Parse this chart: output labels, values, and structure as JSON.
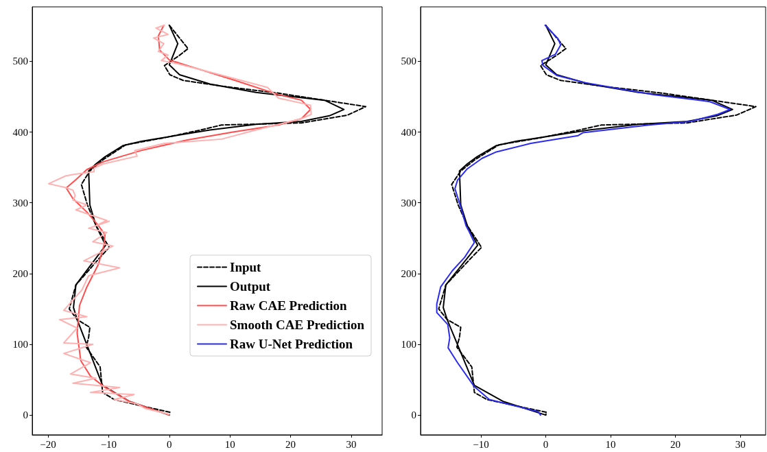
{
  "chart_data": [
    {
      "type": "line",
      "xlim": [
        -22.6,
        35.1
      ],
      "ylim": [
        -28,
        577
      ],
      "xticks": [
        -20,
        -10,
        0,
        10,
        20,
        30
      ],
      "yticks": [
        0,
        100,
        200,
        300,
        400,
        500
      ],
      "grid": false,
      "legend": "right",
      "marker": "none",
      "series": [
        {
          "name": "Input",
          "color": "#000000",
          "line_style": "dashed",
          "x": [
            0,
            3.1,
            1.6,
            -0.8,
            0.1,
            2.3,
            8.6,
            18,
            25.6,
            32.4,
            29.4,
            21.8,
            8.6,
            5.2,
            -0.8,
            -7.2,
            -10.9,
            -13.1,
            -14.5,
            -13.5,
            -12.1,
            -9.9,
            -11.4,
            -15.4,
            -16.5,
            -15.2,
            -13.1,
            -13.3,
            -13.7,
            -11.4,
            -11.0,
            -9.1,
            -4.6,
            0.1,
            0
          ],
          "values": [
            551,
            518,
            508,
            494,
            481,
            473,
            465,
            455,
            445,
            436,
            424,
            413,
            410,
            403,
            392,
            382,
            361,
            345,
            326,
            297,
            268,
            237,
            223,
            184,
            150,
            135,
            124,
            110,
            96,
            68,
            32,
            22,
            13,
            4,
            0
          ]
        },
        {
          "name": "Output",
          "color": "#000000",
          "line_style": "solid",
          "x": [
            0,
            1.4,
            0,
            1.7,
            6.7,
            14.3,
            25.6,
            28.8,
            26.4,
            21.8,
            14.3,
            6.7,
            -4.6,
            -7.6,
            -10.6,
            -12.1,
            -13.3,
            -13.1,
            -12.1,
            -10.5,
            -15.4,
            -15.8,
            -15.2,
            -11.0,
            -6.5,
            0
          ],
          "values": [
            551,
            525,
            495,
            481,
            468,
            456,
            445,
            432,
            423,
            415,
            411,
            403,
            387,
            381,
            365,
            355,
            345,
            297,
            268,
            240,
            184,
            152,
            135,
            42,
            19,
            0
          ]
        },
        {
          "name": "Raw CAE Prediction",
          "color": "#ff4d4d",
          "line_style": "solid",
          "x": [
            -0.9,
            -1.8,
            -1.6,
            0,
            3.0,
            10.5,
            18,
            21.8,
            23.3,
            21.8,
            18,
            10.5,
            3.0,
            -4.6,
            -10.9,
            -13.6,
            -15.5,
            -17.0,
            -15.9,
            -13.6,
            -11.8,
            -10.6,
            -10.8,
            -11.7,
            -13.6,
            -14.8,
            -15.2,
            -14.6,
            -13.0,
            -10.6,
            -6.5,
            0
          ],
          "values": [
            551,
            536,
            516,
            502,
            494,
            474,
            453,
            445,
            432,
            419,
            410,
            400,
            389,
            374,
            358,
            347,
            332,
            321,
            306,
            287,
            269,
            255,
            239,
            213,
            181,
            155,
            116,
            77,
            55,
            39,
            19,
            0
          ]
        },
        {
          "name": "Smooth CAE Prediction",
          "color": "#ffb0b0",
          "line_style": "solid",
          "x": [
            -0.8,
            -2.2,
            -0.2,
            -2.6,
            -0.9,
            -1.8,
            -0.2,
            -1.3,
            1.2,
            5.7,
            16.2,
            18,
            23.3,
            23.4,
            21.8,
            14.3,
            8.6,
            -0.8,
            -5.7,
            -5.3,
            -10.9,
            -12.4,
            -12.4,
            -15.9,
            -17.1,
            -19.9,
            -17.3,
            -15.9,
            -15.5,
            -15.9,
            -13.6,
            -15.4,
            -13,
            -10.3,
            -11.8,
            -9.9,
            -13.3,
            -10.3,
            -12.6,
            -9.3,
            -14.1,
            -8.2,
            -13.3,
            -14.4,
            -17.4,
            -13.6,
            -18.1,
            -15.2,
            -17.4,
            -12.6,
            -17.4,
            -13,
            -16.3,
            -12.1,
            -15.9,
            -8.2,
            -13,
            -5.8,
            -9.1,
            -5.4,
            -3.9,
            0
          ],
          "values": [
            551,
            547,
            538,
            533,
            525,
            514,
            509,
            501,
            497,
            487,
            463,
            448,
            438,
            425,
            419,
            403,
            390,
            384,
            374,
            366,
            355,
            349,
            344,
            340,
            338,
            327,
            322,
            318,
            310,
            304,
            297,
            290,
            283,
            275,
            269,
            274,
            264,
            258,
            245,
            239,
            218,
            208,
            197,
            177,
            148,
            139,
            135,
            123,
            102,
            100,
            87,
            74,
            58,
            52,
            45,
            39,
            32,
            29,
            22,
            16,
            9,
            1
          ]
        },
        {
          "name": "Raw U-Net Prediction",
          "color": "#2a2af0",
          "line_style": "solid"
        }
      ]
    },
    {
      "type": "line",
      "xlim": [
        -19.3,
        33.9
      ],
      "ylim": [
        -28,
        577
      ],
      "xticks": [
        -10,
        0,
        10,
        20,
        30
      ],
      "yticks": [
        0,
        100,
        200,
        300,
        400,
        500
      ],
      "grid": false,
      "legend": false,
      "marker": "none",
      "series": [
        {
          "color": "#000000",
          "line_style": "dashed",
          "x": [
            0,
            3.1,
            1.6,
            -0.8,
            0.1,
            2.3,
            8.6,
            18,
            25.6,
            32.4,
            29.4,
            21.8,
            8.6,
            5.2,
            -0.8,
            -7.2,
            -10.9,
            -13.1,
            -14.5,
            -13.5,
            -12.1,
            -9.9,
            -11.4,
            -15.4,
            -16.5,
            -15.2,
            -13.1,
            -13.3,
            -13.7,
            -11.4,
            -11.0,
            -9.1,
            -4.6,
            0.1,
            0
          ],
          "values": [
            551,
            518,
            508,
            494,
            481,
            473,
            465,
            455,
            445,
            436,
            424,
            413,
            410,
            403,
            392,
            382,
            361,
            345,
            326,
            297,
            268,
            237,
            223,
            184,
            150,
            135,
            124,
            110,
            96,
            68,
            32,
            22,
            13,
            4,
            0
          ]
        },
        {
          "color": "#000000",
          "line_style": "solid",
          "x": [
            0,
            1.4,
            0,
            1.7,
            6.7,
            14.3,
            25.6,
            28.8,
            26.4,
            21.8,
            14.3,
            6.7,
            -4.6,
            -7.6,
            -10.6,
            -12.1,
            -13.3,
            -13.1,
            -12.1,
            -10.5,
            -15.4,
            -15.8,
            -15.2,
            -11.0,
            -6.5,
            0
          ],
          "values": [
            551,
            525,
            495,
            481,
            468,
            456,
            445,
            432,
            423,
            415,
            411,
            403,
            387,
            381,
            365,
            355,
            345,
            297,
            268,
            240,
            184,
            152,
            135,
            42,
            19,
            0
          ]
        },
        {
          "color": "#2a2af0",
          "line_style": "solid",
          "x": [
            -0.1,
            1.9,
            2.3,
            1.5,
            -0.6,
            -0.4,
            1.7,
            6.0,
            16.6,
            25.3,
            28.4,
            26.5,
            22.3,
            15.9,
            5.7,
            5.0,
            -2.3,
            -7.6,
            -9.8,
            -12.1,
            -13.6,
            -14,
            -13.1,
            -12.3,
            -11.9,
            -11.0,
            -12.5,
            -14.4,
            -16.2,
            -16.8,
            -16.8,
            -15.1,
            -14.8,
            -15.05,
            -13.6,
            -11.0,
            -8.7,
            -1.2,
            -0.8
          ],
          "values": [
            551,
            532,
            523,
            510,
            501,
            494,
            480,
            470,
            453,
            443,
            432,
            425,
            415,
            410,
            399,
            395,
            384,
            372,
            363,
            348,
            332,
            320,
            294,
            268,
            261,
            244,
            223,
            204,
            181,
            157,
            145,
            128,
            109,
            95,
            74,
            40,
            22,
            5,
            0
          ]
        }
      ]
    }
  ]
}
